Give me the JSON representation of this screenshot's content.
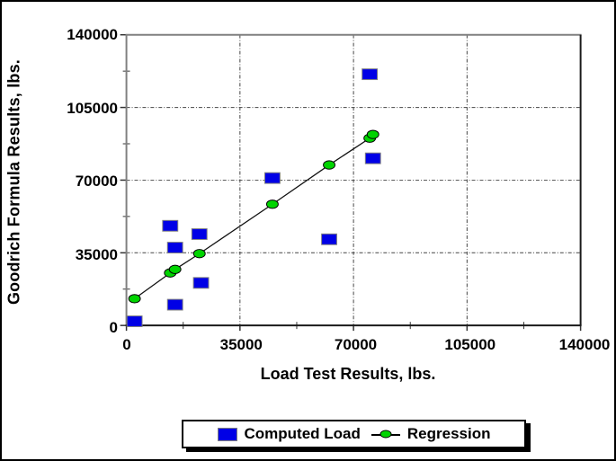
{
  "chart_data": {
    "type": "scatter",
    "title": "",
    "xlabel": "Load Test Results, lbs.",
    "ylabel": "Goodrich Formula Results, lbs.",
    "xlim": [
      0,
      140000
    ],
    "ylim": [
      0,
      140000
    ],
    "x_ticks": [
      0,
      35000,
      70000,
      105000,
      140000
    ],
    "y_ticks": [
      0,
      35000,
      70000,
      105000,
      140000
    ],
    "x_tick_labels": [
      "0",
      "35000",
      "70000",
      "105000",
      "140000"
    ],
    "y_tick_labels": [
      "0",
      "35000",
      "70000",
      "105000",
      "140000"
    ],
    "minor_tick_step": 17500,
    "grid": "dash-dot lines at major ticks, horizontal and vertical",
    "legend_position": "bottom",
    "series": [
      {
        "name": "Computed Load",
        "marker": "square",
        "color": "#0000E6",
        "edge_color": "#808080",
        "line": false,
        "points": [
          [
            2500,
            2000
          ],
          [
            13500,
            48000
          ],
          [
            15000,
            37500
          ],
          [
            15000,
            10000
          ],
          [
            22500,
            44000
          ],
          [
            23000,
            20500
          ],
          [
            45000,
            71000
          ],
          [
            62500,
            41500
          ],
          [
            75000,
            121000
          ],
          [
            76000,
            80500
          ]
        ]
      },
      {
        "name": "Regression",
        "marker": "ellipse",
        "color": "#00D400",
        "edge_color": "#000000",
        "line": true,
        "line_color": "#111111",
        "points": [
          [
            2500,
            12900
          ],
          [
            13500,
            25300
          ],
          [
            15000,
            27000
          ],
          [
            22500,
            34600
          ],
          [
            45000,
            58400
          ],
          [
            62500,
            77300
          ],
          [
            75000,
            90200
          ],
          [
            76000,
            92000
          ]
        ]
      }
    ]
  },
  "colors": {
    "grid": "#444444",
    "axis_top_left": "#808080",
    "axis_bottom_right": "#1a1a1a",
    "tick": "#333333",
    "background": "#ffffff"
  }
}
